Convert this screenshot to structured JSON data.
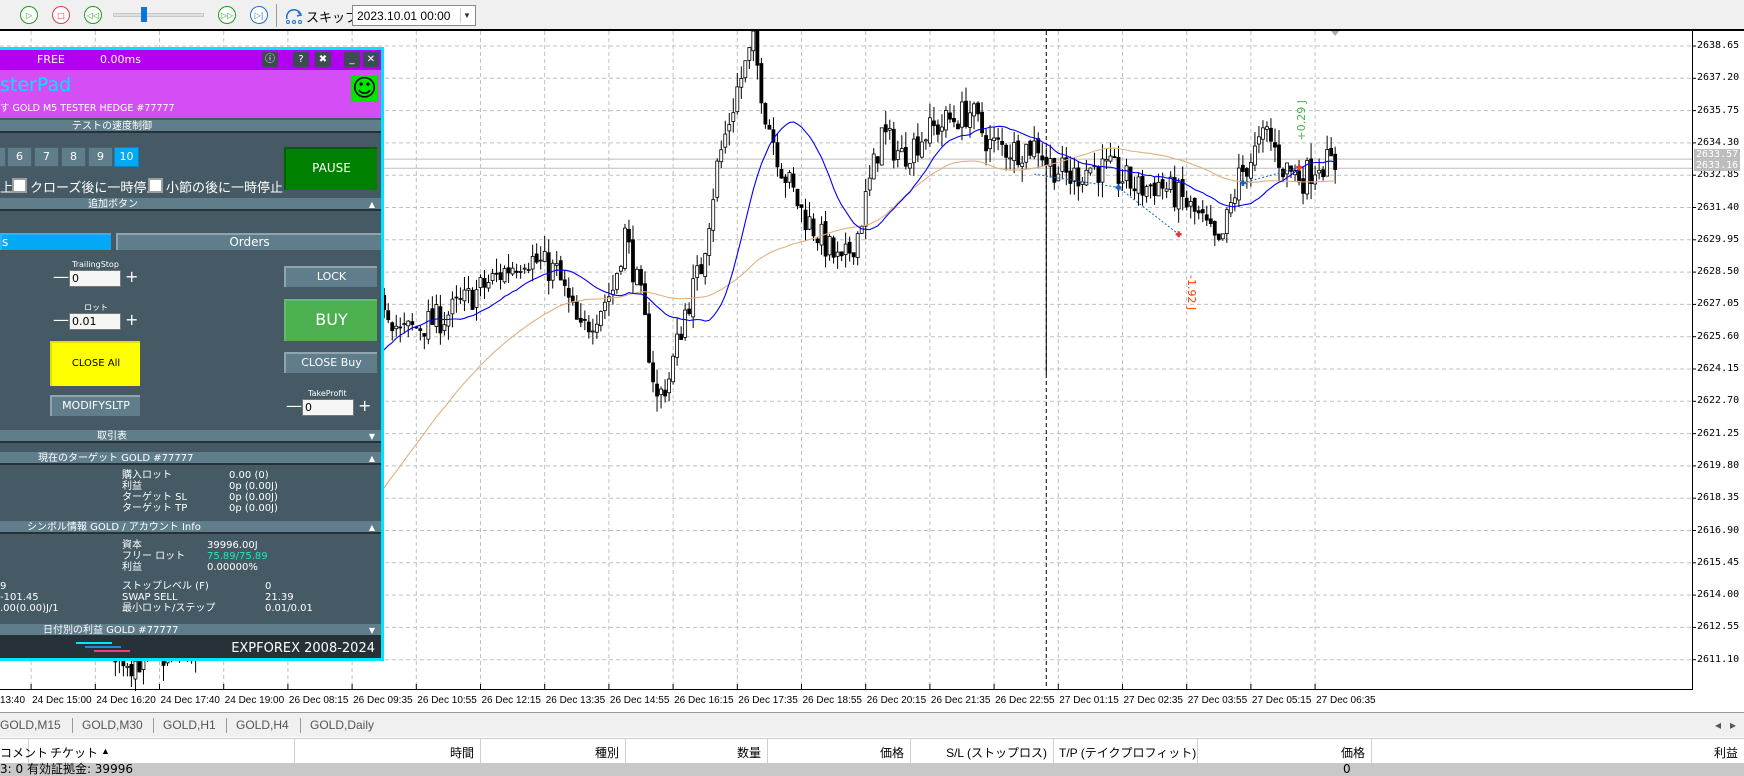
{
  "toolbar": {
    "buttons": [
      {
        "name": "play-icon",
        "glyph": "▷",
        "color": "#1a9f1a"
      },
      {
        "name": "stop-icon",
        "glyph": "□",
        "color": "#e04040"
      },
      {
        "name": "rewind-icon",
        "glyph": "◁◁",
        "color": "#1a9f1a"
      },
      {
        "name": "fast-forward-icon",
        "glyph": "▷▷",
        "color": "#1a9f1a"
      },
      {
        "name": "step-forward-icon",
        "glyph": "▷|",
        "color": "#1a6fcf"
      }
    ],
    "speed_slider_value": 0.33,
    "skip_label": "スキップ",
    "date_value": "2023.10.01 00:00"
  },
  "panel": {
    "status": "FREE",
    "latency": "0.00ms",
    "title_icons": [
      "info-icon",
      "help-icon",
      "tools-icon",
      "minimize-icon",
      "close-icon"
    ],
    "title_glyphs": [
      "ⓘ",
      "?",
      "✖",
      "_",
      "✕"
    ],
    "app_name": "sterPad",
    "subtitle": "す GOLD M5 TESTER HEDGE  #77777",
    "smiley": "☺",
    "speed_header": "テストの速度制御",
    "speed_buttons": [
      "6",
      "7",
      "8",
      "9",
      "10"
    ],
    "speed_active": "10",
    "pause_label": "PAUSE",
    "cb_prefix": "上",
    "cb_close_label": "クローズ後に一時停止",
    "cb_bar_label": "小節の後に一時停止",
    "extra_header": "追加ボタン",
    "tab_positions": "s",
    "tab_orders": "Orders",
    "trailing_label": "TrailingStop",
    "trailing_value": "0",
    "lot_label": "ロット",
    "lot_value": "0.01",
    "lock_label": "LOCK",
    "buy_label": "BUY",
    "close_all_label": "CLOSE All",
    "close_buy_label": "CLOSE Buy",
    "modify_label": "MODIFYSLTP",
    "tp_label": "TakeProfit",
    "tp_value": "0",
    "minus": "—",
    "plus": "+",
    "trade_header": "取引表",
    "target_header": "現在のターゲット GOLD  #77777",
    "target_rows": [
      {
        "k": "購入ロット",
        "v": "0.00 (0)"
      },
      {
        "k": "利益",
        "v": "0p (0.00J)"
      },
      {
        "k": "ターゲット SL",
        "v": "0p (0.00J)"
      },
      {
        "k": "ターゲット TP",
        "v": "0p (0.00J)"
      }
    ],
    "symbol_header": "シンボル情報 GOLD / アカウント Info",
    "account_rows": [
      {
        "k": "資本",
        "v": "39996.00J"
      },
      {
        "k": "フリー ロット",
        "v": "75.89/75.89"
      },
      {
        "k": "利益",
        "v": "0.00000%"
      }
    ],
    "left_values": [
      "9",
      "-101.45",
      ".00(0.00)J/1"
    ],
    "symbol_rows": [
      {
        "k": "ストップレベル (F)",
        "v": "0"
      },
      {
        "k": "SWAP SELL",
        "v": "21.39"
      },
      {
        "k": "最小ロット/ステップ",
        "v": "0.01/0.01"
      }
    ],
    "daily_header": "日付別の利益 GOLD  #77777",
    "footer": "EXPFOREX 2008-2024",
    "arrow_up": "▲",
    "arrow_down": "▼",
    "colors": {
      "titlebar": "#b300f0",
      "pink": "#d54ef5",
      "panel": "#455a64",
      "header": "#607d8b",
      "pause": "#008000",
      "buy": "#4caf50",
      "close_all": "#ffff00",
      "free_lot": "#1de9b6",
      "accent": "#03a9f4"
    }
  },
  "chart": {
    "symbol": "GOLD",
    "timeframe": "M5",
    "price_ticks": [
      "2638.65",
      "2637.20",
      "2635.75",
      "2634.30",
      "2632.85",
      "2631.40",
      "2629.95",
      "2628.50",
      "2627.05",
      "2625.60",
      "2624.15",
      "2622.70",
      "2621.25",
      "2619.80",
      "2618.35",
      "2616.90",
      "2615.45",
      "2614.00",
      "2612.55",
      "2611.10"
    ],
    "bid": "2633.57",
    "ask": "2633.16",
    "time_ticks": [
      "13:40",
      "24 Dec 15:00",
      "24 Dec 16:20",
      "24 Dec 17:40",
      "24 Dec 19:00",
      "26 Dec 08:15",
      "26 Dec 09:35",
      "26 Dec 10:55",
      "26 Dec 12:15",
      "26 Dec 13:35",
      "26 Dec 14:55",
      "26 Dec 16:15",
      "26 Dec 17:35",
      "26 Dec 18:55",
      "26 Dec 20:15",
      "26 Dec 21:35",
      "26 Dec 22:55",
      "27 Dec 01:15",
      "27 Dec 02:35",
      "27 Dec 03:55",
      "27 Dec 05:15",
      "27 Dec 06:35"
    ],
    "price_path": [
      [
        -8,
        2618
      ],
      [
        10,
        2613
      ],
      [
        25,
        2611
      ],
      [
        40,
        2611.5
      ],
      [
        60,
        2620
      ],
      [
        88,
        2627.24
      ],
      [
        92,
        2625.74
      ],
      [
        103,
        2626.49
      ],
      [
        112,
        2627.74
      ],
      [
        123,
        2629.24
      ],
      [
        131,
        2628.49
      ],
      [
        137,
        2625.74
      ],
      [
        145,
        2627.74
      ],
      [
        148,
        2630.24
      ],
      [
        152,
        2627.24
      ],
      [
        156,
        2622.75
      ],
      [
        159,
        2623.75
      ],
      [
        163,
        2626.74
      ],
      [
        167,
        2628.74
      ],
      [
        171,
        2633.23
      ],
      [
        176,
        2636.72
      ],
      [
        180,
        2638.72
      ],
      [
        183,
        2635.72
      ],
      [
        187,
        2633.23
      ],
      [
        192,
        2631.23
      ],
      [
        198,
        2629.74
      ],
      [
        202,
        2628.74
      ],
      [
        206,
        2630.24
      ],
      [
        212,
        2634.73
      ],
      [
        217,
        2633.73
      ],
      [
        223,
        2634.73
      ],
      [
        228,
        2635.23
      ],
      [
        234,
        2635.72
      ],
      [
        239,
        2634.23
      ],
      [
        245,
        2633.98
      ],
      [
        251,
        2634.23
      ],
      [
        253,
        2633.48
      ],
      [
        259,
        2632.73
      ],
      [
        264,
        2633.23
      ],
      [
        270,
        2632.98
      ],
      [
        276,
        2632.23
      ],
      [
        281,
        2632.48
      ],
      [
        287,
        2631.73
      ],
      [
        292,
        2630.73
      ],
      [
        296,
        2629.49
      ],
      [
        301,
        2632.73
      ],
      [
        308,
        2634.73
      ],
      [
        312,
        2633.23
      ],
      [
        317,
        2632.73
      ],
      [
        321,
        2633.48
      ],
      [
        325,
        2633.33
      ]
    ],
    "long_wick": {
      "bar": 253,
      "low": 2623.9
    },
    "profit_labels": [
      {
        "text": "+0.29 J",
        "color": "#4caf50"
      },
      {
        "text": "-1.92 J",
        "color": "#ff3d00"
      }
    ],
    "colors": {
      "ma_fast": "#0000ff",
      "ma_slow": "#e0b080",
      "buy_marker": "#1565c0",
      "sell_marker": "#e53935",
      "grid": "#c0c0c0"
    }
  },
  "bottom": {
    "tabs": [
      "GOLD,M15",
      "GOLD,M30",
      "GOLD,H1",
      "GOLD,H4",
      "GOLD,Daily"
    ],
    "columns": [
      "チケット",
      "時間",
      "種別",
      "数量",
      "価格",
      "S/L (ストップロス)",
      "T/P (テイクプロフィット)",
      "価格",
      "利益",
      "コメント"
    ],
    "sort_indicator": "▲",
    "status_text": "3: 0  有効証拠金: 39996",
    "status_profit": "0",
    "scroll_glyphs": [
      "◂",
      "▸"
    ]
  }
}
